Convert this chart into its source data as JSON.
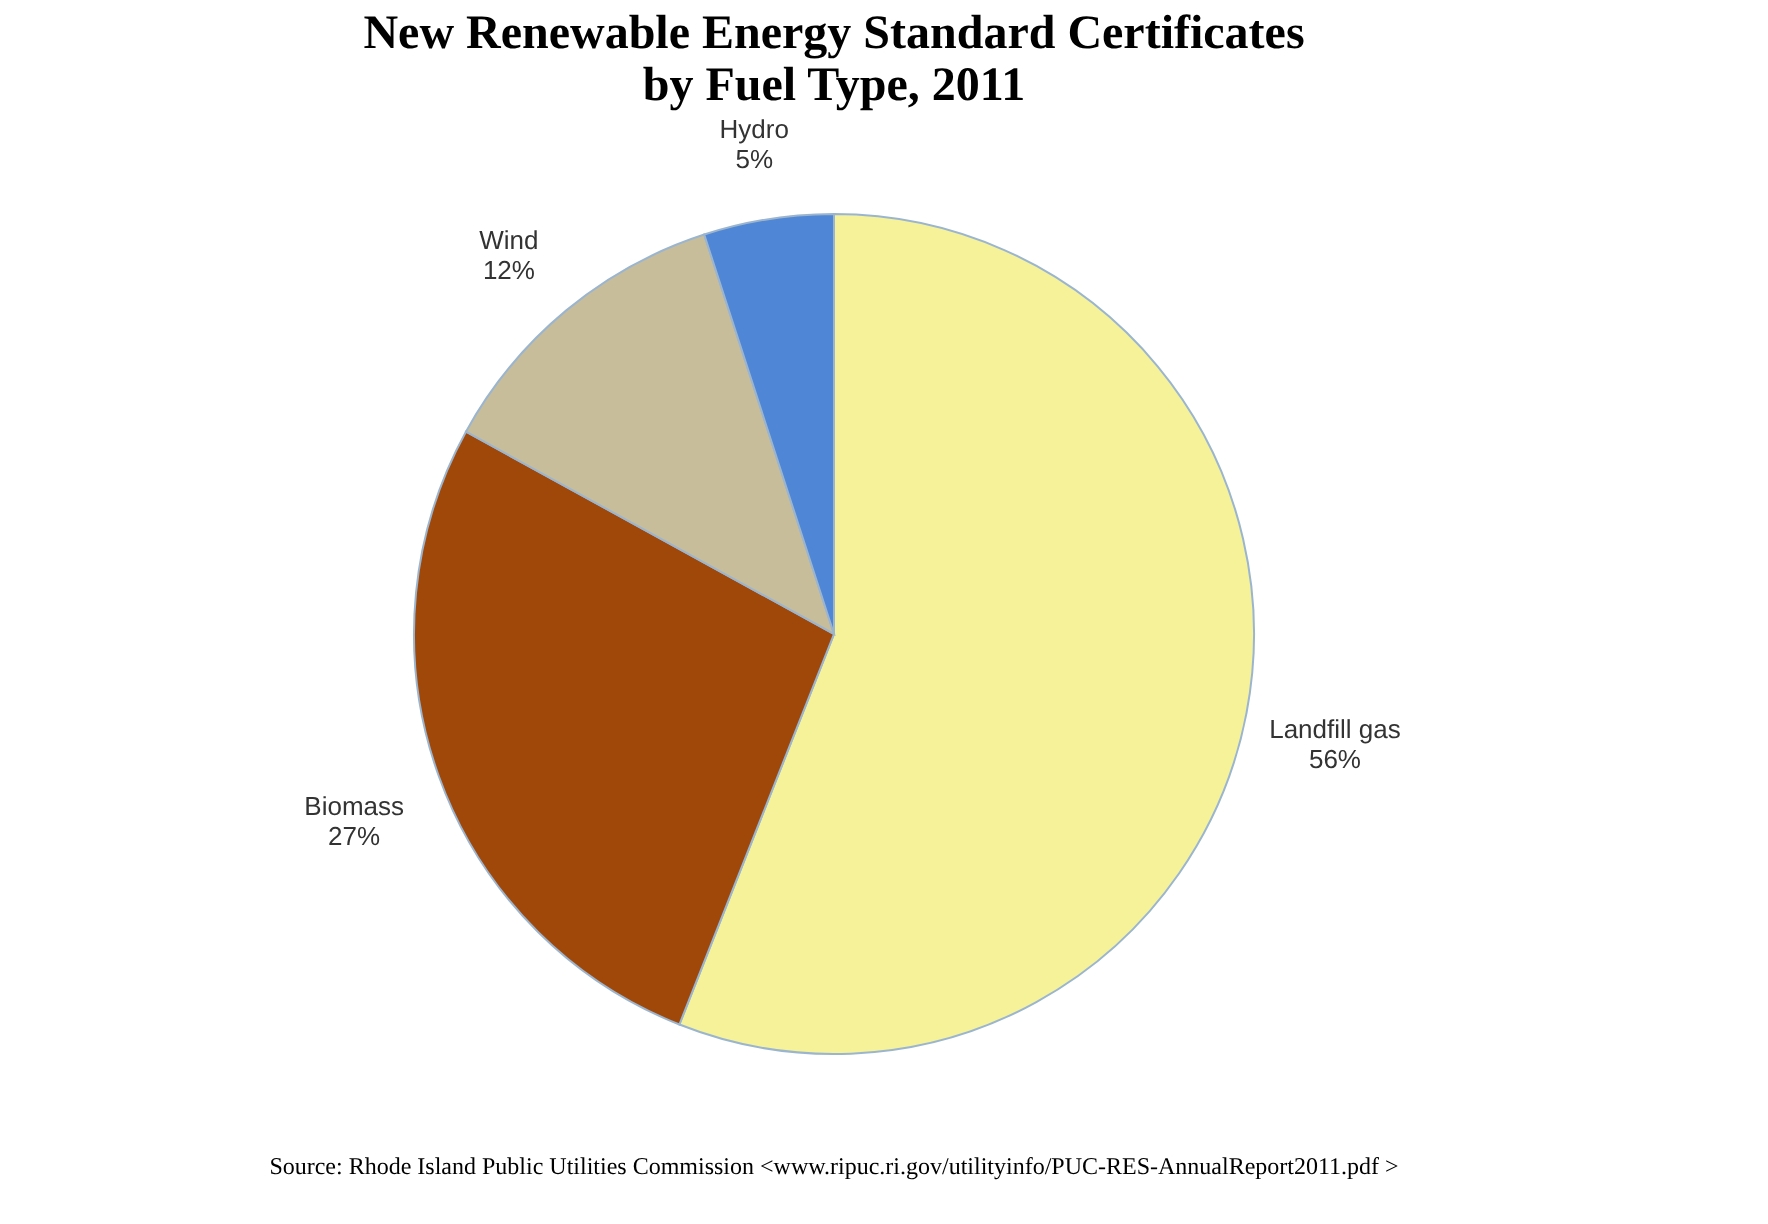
{
  "chart_data": {
    "type": "pie",
    "title": [
      "New Renewable Energy Standard Certificates",
      "by Fuel Type, 2011"
    ],
    "categories": [
      "Landfill gas",
      "Biomass",
      "Wind",
      "Hydro"
    ],
    "values": [
      56,
      27,
      12,
      5
    ],
    "value_labels": [
      "56%",
      "27%",
      "12%",
      "5%"
    ],
    "colors": [
      "#f5f29a",
      "#a0480a",
      "#c8bd9a",
      "#4f86d6"
    ],
    "legend": false,
    "annotations": [
      "Source: Rhode Island Public Utilities Commission <www.ripuc.ri.gov/utilityinfo/PUC-RES-AnnualReport2011.pdf >"
    ]
  }
}
